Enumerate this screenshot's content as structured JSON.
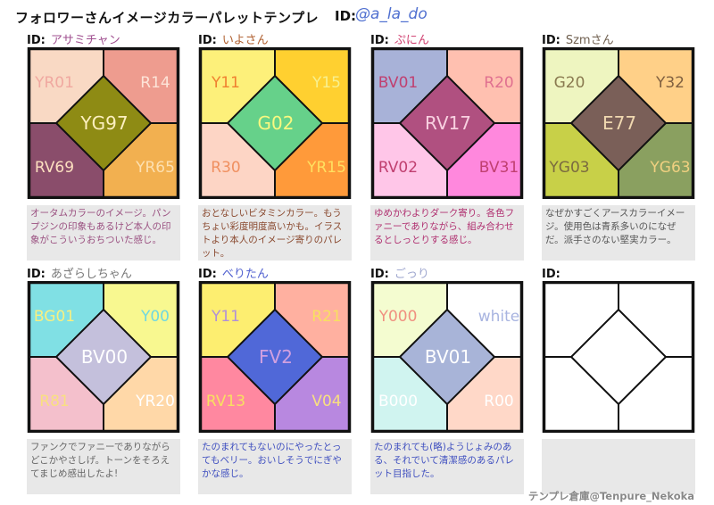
{
  "title": "フォロワーさんイメージカラーパレットテンプレ",
  "header_id_label": "ID:",
  "header_handle": "@a_la_do",
  "id_label": "ID:",
  "watermark": "テンプレ倉庫@Tenpure_Nekoka",
  "panels": [
    {
      "name": "アサミチャン",
      "name_color": "#a05090",
      "note": "オータムカラーのイメージ。パンプジンの印象もあるけど本人の印象がこういうおちついた感じ。",
      "note_color": "#9a5080",
      "colors": {
        "tl": "#f9d9c4",
        "tr": "#ee9c8f",
        "bl": "#8a4d6b",
        "br": "#f2b050",
        "center": "#8e8b14"
      },
      "labels": {
        "tl": "YR01",
        "tr": "R14",
        "bl": "RV69",
        "br": "YR65",
        "center": "YG97"
      },
      "label_colors": {
        "tl": "#f0a8a0",
        "tr": "#fde4d8",
        "bl": "#fde0c0",
        "br": "#fde0b0",
        "center": "#fdf0c0"
      }
    },
    {
      "name": "いよさん",
      "name_color": "#b06030",
      "note": "おとなしいビタミンカラー。もうちょい彩度明度高いかも。イラストより本人のイメージ寄りのパレット。",
      "note_color": "#8a4a30",
      "colors": {
        "tl": "#fdf07a",
        "tr": "#ffd030",
        "bl": "#fdd5c5",
        "br": "#ff9a3a",
        "center": "#66d18a"
      },
      "labels": {
        "tl": "Y11",
        "tr": "Y15",
        "bl": "R30",
        "br": "YR15",
        "center": "G02"
      },
      "label_colors": {
        "tl": "#f08030",
        "tr": "#f8f090",
        "bl": "#f09060",
        "br": "#ffe060",
        "center": "#f8f880"
      }
    },
    {
      "name": "ぷにん",
      "name_color": "#d04070",
      "note": "ゆめかわよりダーク寄り。各色ファニーでありながら、組み合わせるとしっとりする感じ。",
      "note_color": "#b03070",
      "colors": {
        "tl": "#a8b2d8",
        "tr": "#ffc0b0",
        "bl": "#ffc6e8",
        "br": "#ff88dd",
        "center": "#b05080"
      },
      "labels": {
        "tl": "BV01",
        "tr": "R20",
        "bl": "RV02",
        "br": "BV31",
        "center": "RV17"
      },
      "label_colors": {
        "tl": "#c04070",
        "tr": "#e07090",
        "bl": "#c04070",
        "br": "#c04070",
        "center": "#f8d0e0"
      }
    },
    {
      "name": "Szmさん",
      "name_color": "#706050",
      "note": "なぜかすごくアースカラーイメージ。使用色は青系多いのになぜだ。派手さのない堅実カラー。",
      "note_color": "#555555",
      "colors": {
        "tl": "#eef5c0",
        "tr": "#ffd088",
        "bl": "#c8d048",
        "br": "#8aa060",
        "center": "#7a5f58"
      },
      "labels": {
        "tl": "G20",
        "tr": "Y32",
        "bl": "YG03",
        "br": "YG63",
        "center": "E77"
      },
      "label_colors": {
        "tl": "#8a7a50",
        "tr": "#806040",
        "bl": "#7a6a40",
        "br": "#f0d080",
        "center": "#f0d8b0"
      }
    },
    {
      "name": "あざらしちゃん",
      "name_color": "#777777",
      "note": "ファンクでファニーでありながらどこかやさしげ。トーンをそろえてまじめ感出したよ!",
      "note_color": "#666666",
      "colors": {
        "tl": "#80e0e4",
        "tr": "#f8f890",
        "bl": "#f4c0cc",
        "br": "#ffd8a8",
        "center": "#c4c0dc"
      },
      "labels": {
        "tl": "BG01",
        "tr": "Y00",
        "bl": "R81",
        "br": "YR20",
        "center": "BV00"
      },
      "label_colors": {
        "tl": "#f8f080",
        "tr": "#70d8e0",
        "bl": "#f8e080",
        "br": "#ffffff",
        "center": "#ffffff"
      }
    },
    {
      "name": "べりたん",
      "name_color": "#5060d0",
      "note": "たのまれてもないのにやったとってもベリー。おいしそうでにぎやかな感じ。",
      "note_color": "#4050c0",
      "colors": {
        "tl": "#fdee70",
        "tr": "#ffb0a0",
        "bl": "#ff88a0",
        "br": "#b888e0",
        "center": "#5068d8"
      },
      "labels": {
        "tl": "Y11",
        "tr": "R21",
        "bl": "RV13",
        "br": "V04",
        "center": "FV2"
      },
      "label_colors": {
        "tl": "#b090d8",
        "tr": "#f8e060",
        "bl": "#f8e060",
        "br": "#f8e080",
        "center": "#d0a0e0"
      }
    },
    {
      "name": "ごっり",
      "name_color": "#a0a8d0",
      "note": "たのまれても(略)ようじょみのある、それでいて清潔感のあるパレット目指した。",
      "note_color": "#4050c0",
      "colors": {
        "tl": "#f4fcd0",
        "tr": "#ffffff",
        "bl": "#d0f4f0",
        "br": "#ffd8c8",
        "center": "#a8b4d8"
      },
      "labels": {
        "tl": "Y000",
        "tr": "white",
        "bl": "B000",
        "br": "R00",
        "center": "BV01"
      },
      "label_colors": {
        "tl": "#f09080",
        "tr": "#a8b4e0",
        "bl": "#ffffff",
        "br": "#ffffff",
        "center": "#ffffff"
      }
    },
    {
      "name": "",
      "name_color": "#777777",
      "note": "",
      "note_color": "#555555",
      "colors": {
        "tl": "#ffffff",
        "tr": "#ffffff",
        "bl": "#ffffff",
        "br": "#ffffff",
        "center": "#ffffff"
      },
      "labels": {
        "tl": "",
        "tr": "",
        "bl": "",
        "br": "",
        "center": ""
      },
      "label_colors": {
        "tl": "#000",
        "tr": "#000",
        "bl": "#000",
        "br": "#000",
        "center": "#000"
      }
    }
  ]
}
